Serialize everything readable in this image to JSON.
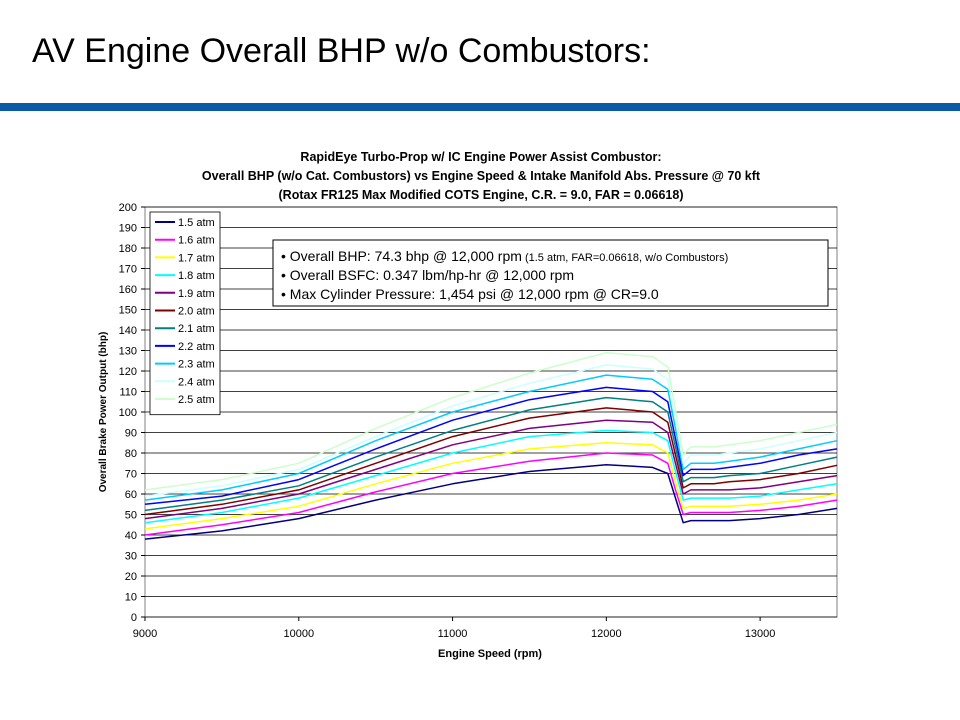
{
  "slide": {
    "title": "AV Engine Overall BHP w/o Combustors:"
  },
  "colors": {
    "title_rule": "#0a5aa8"
  },
  "chart_data": {
    "type": "line",
    "title": [
      "RapidEye Turbo-Prop w/ IC Engine Power Assist Combustor:",
      "Overall BHP (w/o Cat. Combustors) vs Engine Speed & Intake Manifold Abs. Pressure @ 70 kft",
      "(Rotax FR125 Max Modified COTS Engine, C.R. = 9.0, FAR = 0.06618)"
    ],
    "xlabel": "Engine Speed (rpm)",
    "ylabel": "Overall Brake Power Output (bhp)",
    "xlim": [
      9000,
      13500
    ],
    "ylim": [
      0,
      200
    ],
    "xticks": [
      9000,
      10000,
      11000,
      12000,
      13000
    ],
    "yticks": [
      0,
      10,
      20,
      30,
      40,
      50,
      60,
      70,
      80,
      90,
      100,
      110,
      120,
      130,
      140,
      150,
      160,
      170,
      180,
      190,
      200
    ],
    "grid": "horizontal",
    "legend_position": "top-left",
    "annotation": [
      {
        "main": "Overall BHP: 74.3 bhp @ 12,000 rpm",
        "small": "(1.5 atm, FAR=0.06618, w/o Combustors)"
      },
      {
        "main": "Overall BSFC: 0.347 lbm/hp-hr @ 12,000 rpm",
        "small": ""
      },
      {
        "main": "Max Cylinder Pressure: 1,454 psi @ 12,000 rpm @ CR=9.0",
        "small": ""
      }
    ],
    "x": [
      9000,
      9500,
      10000,
      10500,
      11000,
      11500,
      12000,
      12300,
      12400,
      12450,
      12500,
      12550,
      12600,
      12700,
      12800,
      13000,
      13250,
      13500
    ],
    "series": [
      {
        "name": "1.5 atm",
        "color": "#000080",
        "values": [
          38,
          42,
          48,
          57,
          65,
          71,
          74.3,
          73,
          70,
          58,
          46,
          47,
          47,
          47,
          47,
          48,
          50,
          53
        ]
      },
      {
        "name": "1.6 atm",
        "color": "#ff00ff",
        "values": [
          40,
          45,
          51,
          61,
          70,
          76,
          80,
          79,
          75,
          62,
          50,
          51,
          51,
          51,
          51,
          52,
          54,
          57
        ]
      },
      {
        "name": "1.7 atm",
        "color": "#ffff00",
        "values": [
          43,
          48,
          54,
          65,
          75,
          82,
          85,
          84,
          80,
          66,
          53,
          54,
          54,
          54,
          54,
          55,
          57,
          60
        ]
      },
      {
        "name": "1.8 atm",
        "color": "#00ffff",
        "values": [
          46,
          51,
          58,
          69,
          80,
          88,
          91,
          90,
          86,
          71,
          57,
          58,
          58,
          58,
          58,
          59,
          62,
          65
        ]
      },
      {
        "name": "1.9 atm",
        "color": "#800080",
        "values": [
          48,
          53,
          60,
          72,
          84,
          92,
          96,
          95,
          90,
          75,
          60,
          62,
          62,
          62,
          62,
          63,
          66,
          69
        ]
      },
      {
        "name": "2.0 atm",
        "color": "#800000",
        "values": [
          50,
          55,
          62,
          75,
          88,
          97,
          102,
          100,
          95,
          79,
          63,
          65,
          65,
          65,
          66,
          67,
          70,
          74
        ]
      },
      {
        "name": "2.1 atm",
        "color": "#008080",
        "values": [
          52,
          57,
          64,
          78,
          91,
          101,
          107,
          105,
          100,
          83,
          66,
          68,
          68,
          68,
          69,
          70,
          74,
          78
        ]
      },
      {
        "name": "2.2 atm",
        "color": "#0000ff",
        "values": [
          55,
          59,
          67,
          82,
          96,
          106,
          112,
          110,
          105,
          87,
          69,
          72,
          72,
          72,
          73,
          75,
          79,
          82
        ]
      },
      {
        "name": "2.3 atm",
        "color": "#00ccff",
        "values": [
          57,
          62,
          70,
          86,
          100,
          110,
          118,
          116,
          111,
          92,
          72,
          75,
          75,
          75,
          76,
          78,
          82,
          86
        ]
      },
      {
        "name": "2.4 atm",
        "color": "#ccffff",
        "values": [
          59,
          64,
          72,
          88,
          103,
          114,
          123,
          121,
          116,
          96,
          75,
          79,
          79,
          79,
          80,
          82,
          86,
          90
        ]
      },
      {
        "name": "2.5 atm",
        "color": "#ccffcc",
        "values": [
          62,
          67,
          75,
          92,
          107,
          119,
          129,
          127,
          122,
          101,
          79,
          83,
          83,
          83,
          84,
          86,
          90,
          94
        ]
      }
    ]
  }
}
